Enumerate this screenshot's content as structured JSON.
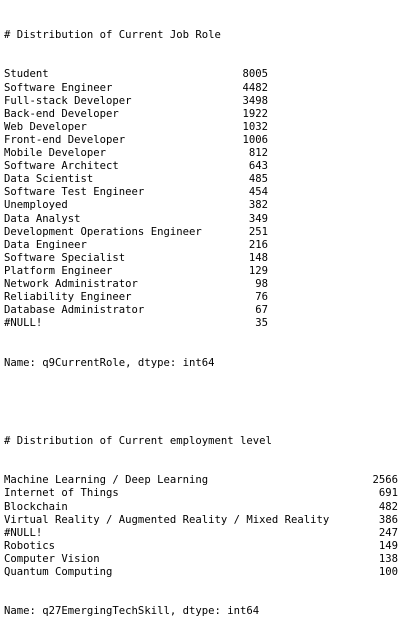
{
  "section1": {
    "header": "# Distribution of Current Job Role",
    "rows": [
      {
        "label": "Student",
        "value": "8005"
      },
      {
        "label": "Software Engineer",
        "value": "4482"
      },
      {
        "label": "Full-stack Developer",
        "value": "3498"
      },
      {
        "label": "Back-end Developer",
        "value": "1922"
      },
      {
        "label": "Web Developer",
        "value": "1032"
      },
      {
        "label": "Front-end Developer",
        "value": "1006"
      },
      {
        "label": "Mobile Developer",
        "value": "812"
      },
      {
        "label": "Software Architect",
        "value": "643"
      },
      {
        "label": "Data Scientist",
        "value": "485"
      },
      {
        "label": "Software Test Engineer",
        "value": "454"
      },
      {
        "label": "Unemployed",
        "value": "382"
      },
      {
        "label": "Data Analyst",
        "value": "349"
      },
      {
        "label": "Development Operations Engineer",
        "value": "251"
      },
      {
        "label": "Data Engineer",
        "value": "216"
      },
      {
        "label": "Software Specialist",
        "value": "148"
      },
      {
        "label": "Platform Engineer",
        "value": "129"
      },
      {
        "label": "Network Administrator",
        "value": "98"
      },
      {
        "label": "Reliability Engineer",
        "value": "76"
      },
      {
        "label": "Database Administrator",
        "value": "67"
      },
      {
        "label": "#NULL!",
        "value": "35"
      }
    ],
    "footer": "Name: q9CurrentRole, dtype: int64"
  },
  "section2": {
    "header": "# Distribution of Current employment level",
    "rows": [
      {
        "label": "Machine Learning / Deep Learning",
        "value": "2566"
      },
      {
        "label": "Internet of Things",
        "value": "691"
      },
      {
        "label": "Blockchain",
        "value": "482"
      },
      {
        "label": "Virtual Reality / Augmented Reality / Mixed Reality",
        "value": "386"
      },
      {
        "label": "#NULL!",
        "value": "247"
      },
      {
        "label": "Robotics",
        "value": "149"
      },
      {
        "label": "Computer Vision",
        "value": "138"
      },
      {
        "label": "Quantum Computing",
        "value": "100"
      }
    ],
    "footer": "Name: q27EmergingTechSkill, dtype: int64"
  }
}
